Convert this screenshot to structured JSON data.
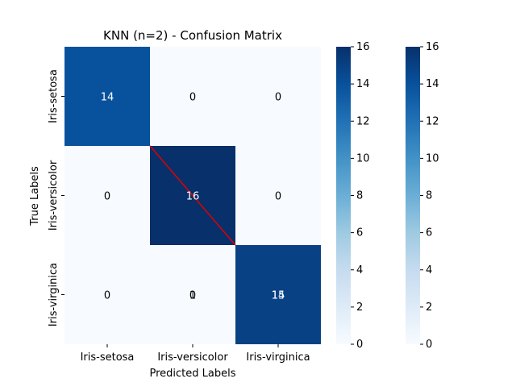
{
  "chart_data": {
    "type": "heatmap",
    "title": "KNN (n=2) - Confusion Matrix",
    "xlabel": "Predicted Labels",
    "ylabel": "True Labels",
    "categories": [
      "Iris-setosa",
      "Iris-versicolor",
      "Iris-virginica"
    ],
    "matrix": [
      [
        14,
        0,
        0
      ],
      [
        0,
        16,
        0
      ],
      [
        0,
        0,
        15
      ]
    ],
    "overlay_annotations": [
      {
        "row": 2,
        "col": 1,
        "text": "1"
      },
      {
        "row": 2,
        "col": 2,
        "text": "14"
      }
    ],
    "colormap": "Blues",
    "colorbars": [
      {
        "range": [
          0,
          16
        ],
        "ticks": [
          0,
          2,
          4,
          6,
          8,
          10,
          12,
          14,
          16
        ]
      },
      {
        "range": [
          0,
          16
        ],
        "ticks": [
          0,
          2,
          4,
          6,
          8,
          10,
          12,
          14,
          16
        ]
      }
    ],
    "diagonal_line_color": "#e00000"
  }
}
